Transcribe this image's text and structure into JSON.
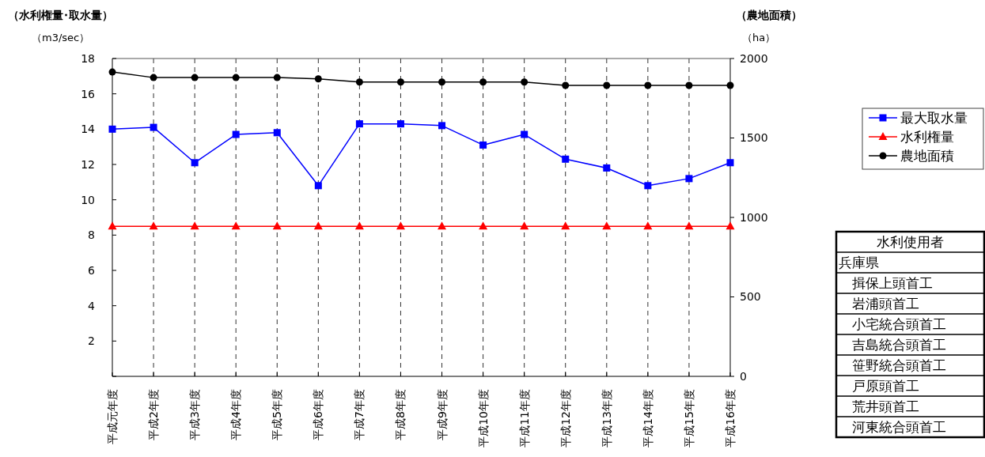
{
  "chart_data": [
    {
      "type": "line",
      "ylabel": "（水利権量･取水量）",
      "y2label": "（農地面積）",
      "annotations": [
        "（m3/sec）",
        "（ha）"
      ],
      "categories": [
        "平成元年度",
        "平成2年度",
        "平成3年度",
        "平成4年度",
        "平成5年度",
        "平成6年度",
        "平成7年度",
        "平成8年度",
        "平成9年度",
        "平成10年度",
        "平成11年度",
        "平成12年度",
        "平成13年度",
        "平成14年度",
        "平成15年度",
        "平成16年度"
      ],
      "series": [
        {
          "name": "最大取水量",
          "color": "#0000ff",
          "marker": "square",
          "values": [
            14.0,
            14.1,
            12.1,
            13.7,
            13.8,
            10.8,
            14.3,
            14.3,
            14.2,
            13.1,
            13.7,
            12.3,
            11.8,
            10.8,
            11.2,
            12.1
          ]
        },
        {
          "name": "水利権量",
          "color": "#ff0000",
          "marker": "triangle",
          "values": [
            8.5,
            8.5,
            8.5,
            8.5,
            8.5,
            8.5,
            8.5,
            8.5,
            8.5,
            8.5,
            8.5,
            8.5,
            8.5,
            8.5,
            8.5,
            8.5
          ]
        },
        {
          "name": "農地面積",
          "color": "#000000",
          "marker": "circle",
          "axis": "y2",
          "values": [
            1915,
            1880,
            1880,
            1880,
            1880,
            1872,
            1852,
            1852,
            1852,
            1852,
            1852,
            1831,
            1831,
            1831,
            1831,
            1831
          ]
        }
      ],
      "ylim": [
        0,
        18
      ],
      "yticks": [
        {
          "value": 0,
          "label": null
        },
        2,
        4,
        6,
        8,
        10,
        12,
        14,
        16,
        18
      ],
      "y2lim": [
        0,
        2000
      ],
      "y2ticks": [
        0,
        500,
        1000,
        1500,
        2000
      ],
      "grid": "x",
      "legend": "right"
    },
    {
      "type": "other",
      "title": "水利使用者",
      "annotations": [
        "兵庫県",
        "　揖保上頭首工",
        "　岩浦頭首工",
        "　小宅統合頭首工",
        "　吉島統合頭首工",
        "　笹野統合頭首工",
        "　戸原頭首工",
        "　荒井頭首工",
        "　河東統合頭首工"
      ]
    }
  ]
}
